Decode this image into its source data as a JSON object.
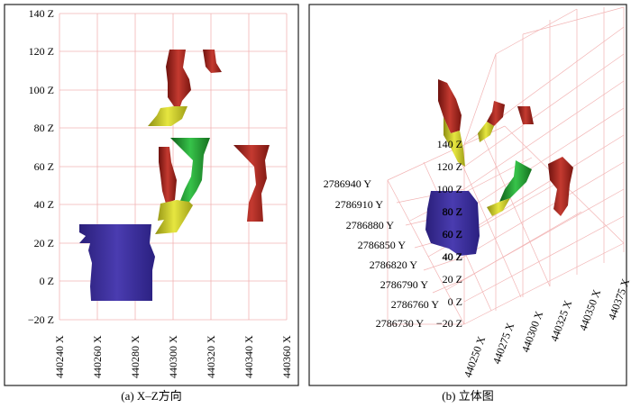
{
  "panel_a": {
    "caption": "(a) X–Z方向",
    "z_ticks": [
      "140 Z",
      "120 Z",
      "100 Z",
      "80 Z",
      "60 Z",
      "40 Z",
      "20 Z",
      "0 Z",
      "−20 Z"
    ],
    "x_ticks": [
      "440240 X",
      "440260 X",
      "440280 X",
      "440300 X",
      "440320 X",
      "440340 X",
      "440360 X"
    ]
  },
  "panel_b": {
    "caption": "(b) 立体图",
    "y_ticks": [
      "2786940 Y",
      "2786910 Y",
      "2786880 Y",
      "2786850 Y",
      "2786820 Y",
      "2786790 Y",
      "2786760 Y",
      "2786730 Y"
    ],
    "z_ticks": [
      "140 Z",
      "120 Z",
      "100 Z",
      "80 Z",
      "60 Z",
      "40 Z",
      "20 Z",
      "0 Z",
      "−20 Z"
    ],
    "x_ticks": [
      "440250 X",
      "440275 X",
      "440300 X",
      "440325 X",
      "440350 X",
      "440375 X"
    ]
  },
  "colors": {
    "grid": "#f2b4b4",
    "frame": "#222222",
    "blue_body": "#3d2f9a",
    "red_body": "#a3221c",
    "yellow_body": "#c8c82a",
    "green_body": "#1f8a2a"
  }
}
